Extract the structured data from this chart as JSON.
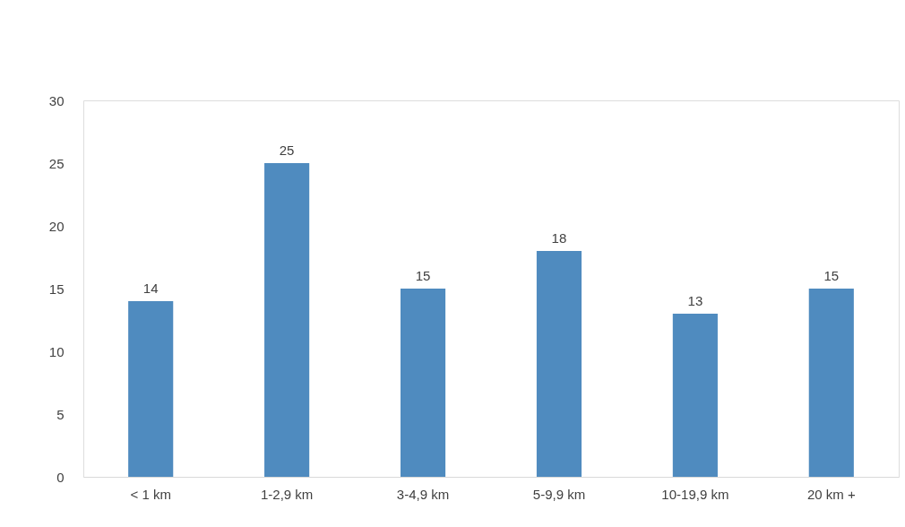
{
  "chart_data": {
    "type": "bar",
    "categories": [
      "< 1 km",
      "1-2,9 km",
      "3-4,9 km",
      "5-9,9 km",
      "10-19,9 km",
      "20 km +"
    ],
    "values": [
      14,
      25,
      15,
      18,
      13,
      15
    ],
    "color": "#4f8bbf",
    "ylim": [
      0,
      30
    ],
    "yticks": [
      0,
      5,
      10,
      15,
      20,
      25,
      30
    ],
    "data_labels": true
  }
}
